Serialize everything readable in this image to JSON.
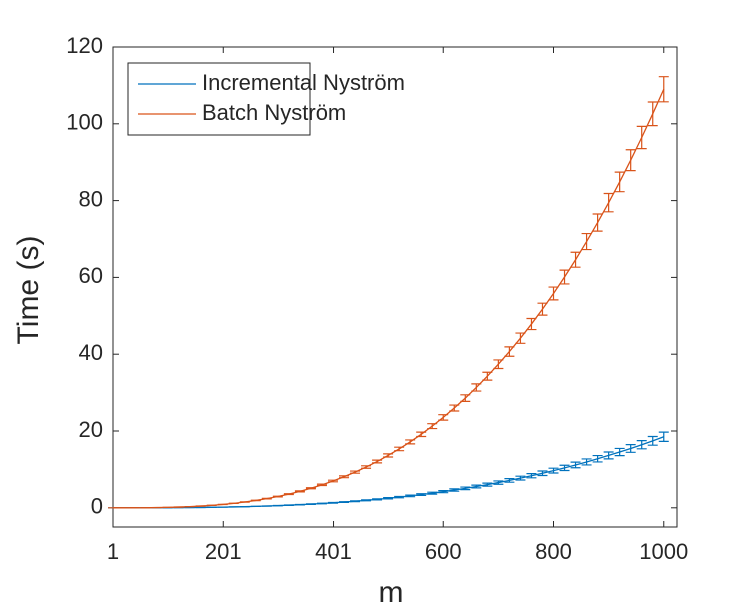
{
  "chart_data": {
    "type": "line",
    "xlabel": "m",
    "ylabel": "Time (s)",
    "x": [
      1,
      20,
      40,
      60,
      80,
      100,
      120,
      140,
      160,
      180,
      200,
      220,
      240,
      260,
      280,
      300,
      320,
      340,
      360,
      380,
      400,
      420,
      440,
      460,
      480,
      500,
      520,
      540,
      560,
      580,
      600,
      620,
      640,
      660,
      680,
      700,
      720,
      740,
      760,
      780,
      800,
      820,
      840,
      860,
      880,
      900,
      920,
      940,
      960,
      980,
      1000
    ],
    "series": [
      {
        "name": "Incremental Nyström",
        "color": "#0072BD",
        "values": [
          0,
          0,
          0,
          0.01,
          0.01,
          0.02,
          0.04,
          0.06,
          0.09,
          0.13,
          0.17,
          0.23,
          0.29,
          0.37,
          0.46,
          0.56,
          0.68,
          0.81,
          0.96,
          1.12,
          1.3,
          1.49,
          1.71,
          1.95,
          2.2,
          2.48,
          2.78,
          3.1,
          3.44,
          3.81,
          4.2,
          4.62,
          5.07,
          5.54,
          6.04,
          6.57,
          7.13,
          7.73,
          8.35,
          9.0,
          9.69,
          10.4,
          11.16,
          11.94,
          12.77,
          13.64,
          14.52,
          15.45,
          16.43,
          17.44,
          18.5
        ],
        "errors": [
          0,
          0,
          0,
          0,
          0,
          0,
          0,
          0,
          0.01,
          0.01,
          0.01,
          0.01,
          0.02,
          0.02,
          0.03,
          0.04,
          0.04,
          0.05,
          0.06,
          0.07,
          0.08,
          0.1,
          0.11,
          0.13,
          0.14,
          0.16,
          0.18,
          0.2,
          0.22,
          0.25,
          0.27,
          0.3,
          0.33,
          0.36,
          0.39,
          0.43,
          0.46,
          0.5,
          0.54,
          0.58,
          0.63,
          0.68,
          0.73,
          0.78,
          0.83,
          0.89,
          0.94,
          1.0,
          1.07,
          1.13,
          1.2
        ]
      },
      {
        "name": "Batch Nyström",
        "color": "#D95319",
        "values": [
          0,
          0,
          0.01,
          0.02,
          0.06,
          0.11,
          0.19,
          0.3,
          0.45,
          0.64,
          0.87,
          1.16,
          1.51,
          1.92,
          2.39,
          2.94,
          3.57,
          4.28,
          5.09,
          5.98,
          6.98,
          8.08,
          9.29,
          10.61,
          12.05,
          13.63,
          15.33,
          17.16,
          19.14,
          21.27,
          23.54,
          25.98,
          28.57,
          31.34,
          34.27,
          37.39,
          40.68,
          44.17,
          47.85,
          51.73,
          55.81,
          60.1,
          64.6,
          69.33,
          74.28,
          79.46,
          84.87,
          90.53,
          96.43,
          102.6,
          109.0
        ],
        "errors": [
          0,
          0,
          0,
          0,
          0,
          0,
          0.01,
          0.01,
          0.01,
          0.02,
          0.03,
          0.03,
          0.05,
          0.06,
          0.07,
          0.09,
          0.11,
          0.13,
          0.15,
          0.18,
          0.21,
          0.24,
          0.28,
          0.32,
          0.36,
          0.41,
          0.46,
          0.51,
          0.57,
          0.64,
          0.71,
          0.78,
          0.86,
          0.94,
          1.03,
          1.12,
          1.22,
          1.33,
          1.44,
          1.55,
          1.67,
          1.8,
          1.94,
          2.08,
          2.23,
          2.38,
          2.55,
          2.72,
          2.89,
          3.08,
          3.27
        ]
      }
    ],
    "xlim": [
      1,
      1024
    ],
    "xticks": [
      1,
      201,
      401,
      600,
      800,
      1000
    ],
    "ylim": [
      -5,
      120
    ],
    "yticks": [
      0,
      20,
      40,
      60,
      80,
      100,
      120
    ],
    "grid": false,
    "legend": "upper left"
  }
}
